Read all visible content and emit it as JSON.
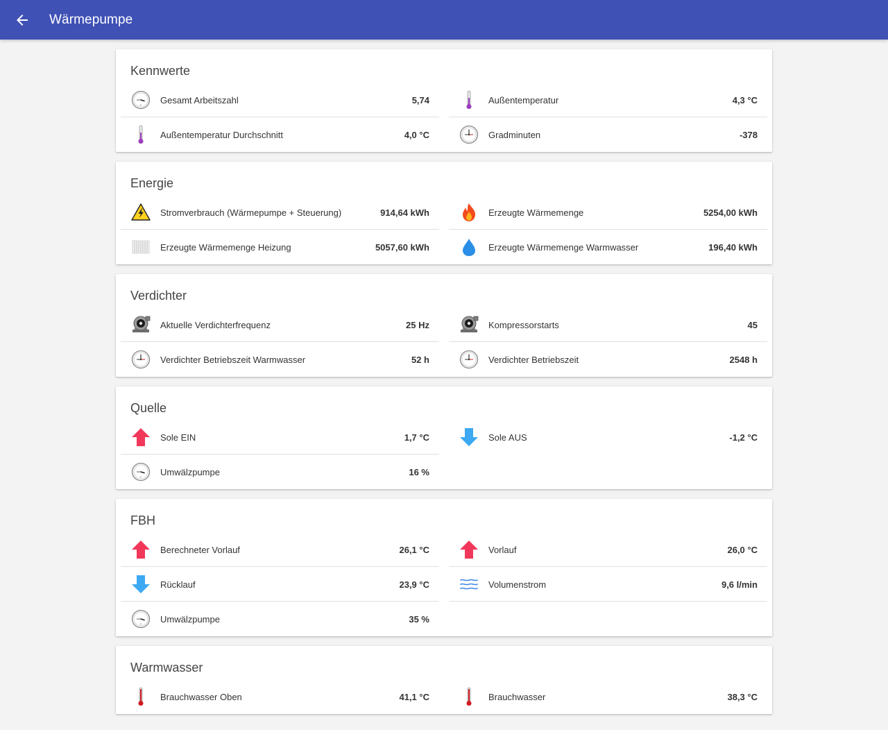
{
  "header": {
    "title": "Wärmepumpe",
    "back_icon": "arrow-left-icon"
  },
  "colors": {
    "appbar": "#3f51b5",
    "arrow_up": "#f2385a",
    "arrow_down": "#3ca9f2"
  },
  "cards": {
    "kennwerte": {
      "title": "Kennwerte",
      "rows": [
        {
          "icon": "gauge-icon",
          "label": "Gesamt Arbeitszahl",
          "value": "5,74"
        },
        {
          "icon": "thermometer-icon",
          "label": "Außentemperatur",
          "value": "4,3 °C"
        },
        {
          "icon": "thermometer-icon",
          "label": "Außentemperatur Durchschnitt",
          "value": "4,0 °C"
        },
        {
          "icon": "clock-icon",
          "label": "Gradminuten",
          "value": "-378"
        }
      ]
    },
    "energie": {
      "title": "Energie",
      "rows": [
        {
          "icon": "warning-voltage-icon",
          "label": "Stromverbrauch (Wärmepumpe + Steuerung)",
          "value": "914,64 kWh"
        },
        {
          "icon": "flame-icon",
          "label": "Erzeugte Wärmemenge",
          "value": "5254,00 kWh"
        },
        {
          "icon": "radiator-icon",
          "label": "Erzeugte Wärmemenge Heizung",
          "value": "5057,60 kWh"
        },
        {
          "icon": "water-drop-icon",
          "label": "Erzeugte Wärmemenge Warmwasser",
          "value": "196,40 kWh"
        }
      ]
    },
    "verdichter": {
      "title": "Verdichter",
      "rows": [
        {
          "icon": "compressor-icon",
          "label": "Aktuelle Verdichterfrequenz",
          "value": "25 Hz"
        },
        {
          "icon": "compressor-icon",
          "label": "Kompressorstarts",
          "value": "45"
        },
        {
          "icon": "clock-icon",
          "label": "Verdichter Betriebszeit Warmwasser",
          "value": "52 h"
        },
        {
          "icon": "clock-icon",
          "label": "Verdichter Betriebszeit",
          "value": "2548 h"
        }
      ]
    },
    "quelle": {
      "title": "Quelle",
      "rows": [
        {
          "icon": "arrow-up-icon",
          "label": "Sole EIN",
          "value": "1,7 °C"
        },
        {
          "icon": "arrow-down-icon",
          "label": "Sole AUS",
          "value": "-1,2 °C"
        },
        {
          "icon": "gauge-icon",
          "label": "Umwälzpumpe",
          "value": "16 %"
        }
      ]
    },
    "fbh": {
      "title": "FBH",
      "rows": [
        {
          "icon": "arrow-up-icon",
          "label": "Berechneter Vorlauf",
          "value": "26,1 °C"
        },
        {
          "icon": "arrow-up-icon",
          "label": "Vorlauf",
          "value": "26,0 °C"
        },
        {
          "icon": "arrow-down-icon",
          "label": "Rücklauf",
          "value": "23,9 °C"
        },
        {
          "icon": "waves-icon",
          "label": "Volumenstrom",
          "value": "9,6 l/min"
        },
        {
          "icon": "gauge-icon",
          "label": "Umwälzpumpe",
          "value": "35 %"
        }
      ]
    },
    "warmwasser": {
      "title": "Warmwasser",
      "rows": [
        {
          "icon": "thermometer-red-icon",
          "label": "Brauchwasser Oben",
          "value": "41,1 °C"
        },
        {
          "icon": "thermometer-red-icon",
          "label": "Brauchwasser",
          "value": "38,3 °C"
        }
      ]
    }
  }
}
